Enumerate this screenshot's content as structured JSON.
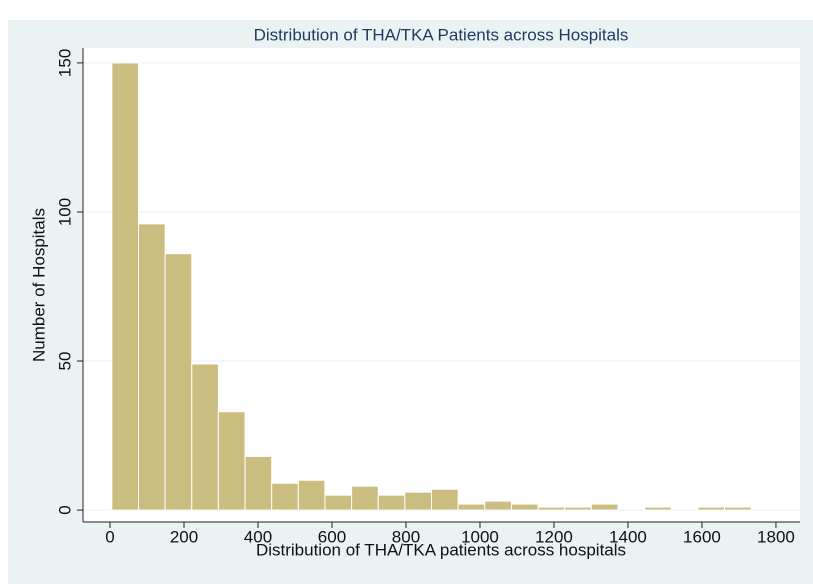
{
  "chart_data": {
    "type": "histogram",
    "title": "Distribution of THA/TKA Patients across Hospitals",
    "x_label": "Distribution of THA/TKA patients across hospitals",
    "y_label": "Number of Hospitals",
    "bins": [
      5,
      77,
      149,
      221,
      293,
      365,
      437,
      509,
      581,
      653,
      725,
      797,
      869,
      941,
      1013,
      1085,
      1157,
      1229,
      1301,
      1373,
      1445,
      1517,
      1589,
      1661,
      1733
    ],
    "values": [
      150,
      96,
      86,
      49,
      33,
      18,
      9,
      10,
      5,
      8,
      5,
      6,
      7,
      2,
      3,
      2,
      1,
      1,
      2,
      0,
      1,
      0,
      1,
      1
    ],
    "color": "#cbbd80",
    "xlim": [
      -73,
      1865
    ],
    "ylim": [
      -4,
      155
    ],
    "xticks": [
      0,
      200,
      400,
      600,
      800,
      1000,
      1200,
      1400,
      1600,
      1800
    ],
    "yticks": [
      0,
      50,
      100,
      150
    ],
    "grid": true
  }
}
